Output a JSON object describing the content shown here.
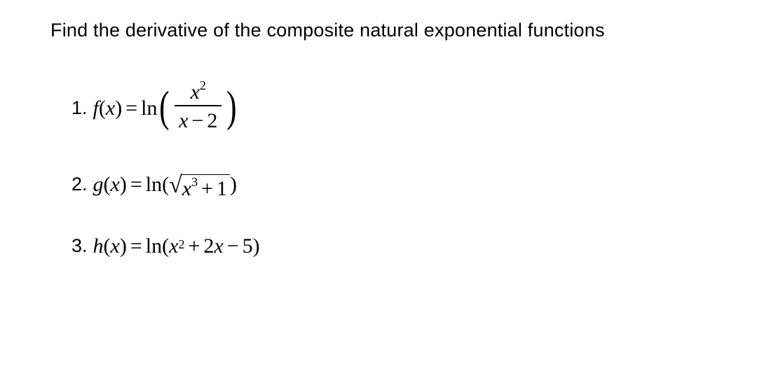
{
  "header": {
    "text": "Find the derivative of the composite natural exponential functions",
    "fontsize": 27,
    "color": "#000000"
  },
  "problems": [
    {
      "number": "1.",
      "func_name": "f",
      "var": "x",
      "eq": "=",
      "outer": "ln",
      "type": "fraction",
      "numerator_base": "x",
      "numerator_exp": "2",
      "denominator_left": "x",
      "denominator_op": "−",
      "denominator_right": "2"
    },
    {
      "number": "2.",
      "func_name": "g",
      "var": "x",
      "eq": "=",
      "outer": "ln",
      "type": "sqrt",
      "inner_base": "x",
      "inner_exp": "3",
      "inner_op": "+",
      "inner_const": "1"
    },
    {
      "number": "3.",
      "func_name": "h",
      "var": "x",
      "eq": "=",
      "outer": "ln",
      "type": "poly",
      "term1_base": "x",
      "term1_exp": "2",
      "term2_op": "+",
      "term2_coef": "2",
      "term2_var": "x",
      "term3_op": "−",
      "term3_const": "5"
    }
  ],
  "style": {
    "background_color": "#ffffff",
    "math_color": "#000000",
    "math_fontsize": 30,
    "header_font": "Arial",
    "math_font": "Times New Roman"
  }
}
